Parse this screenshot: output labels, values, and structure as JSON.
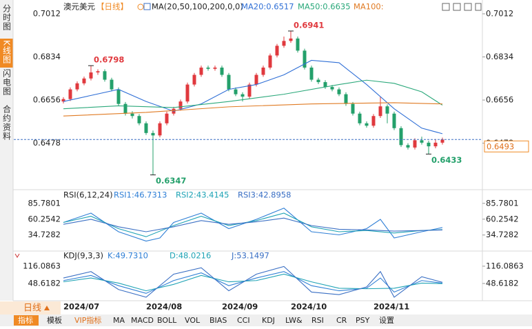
{
  "side_tabs": [
    "分时图",
    "K线图",
    "闪电图",
    "合约资料"
  ],
  "period_button": "日线",
  "bottom_tabs": [
    "指标",
    "模板",
    "VIP指标",
    "MA",
    "MACD",
    "BOLL",
    "VOL",
    "BIAS",
    "CCI",
    "KDJ",
    "LW&",
    "RSI",
    "CR",
    "PSY",
    "设置"
  ],
  "chart_data": [
    {
      "type": "candlestick",
      "title": "澳元美元",
      "period": "【日线】",
      "indicator": "MA(20,50,100,200,0,0)",
      "categories": [
        "2024/07",
        null,
        null,
        null,
        null,
        null,
        null,
        null,
        null,
        null,
        null,
        null,
        "2024/08",
        null,
        null,
        null,
        null,
        null,
        null,
        null,
        null,
        null,
        null,
        "2024/09",
        null,
        null,
        null,
        null,
        null,
        null,
        null,
        null,
        null,
        "2024/10",
        null,
        null,
        null,
        null,
        null,
        null,
        null,
        null,
        null,
        null,
        null,
        "2024/11",
        null,
        null,
        null,
        null,
        null,
        null,
        null,
        null,
        null,
        null
      ],
      "open": [
        0.665,
        0.666,
        0.67,
        0.6725,
        0.6745,
        0.677,
        0.6775,
        0.674,
        0.67,
        0.664,
        0.66,
        0.659,
        0.656,
        0.652,
        0.651,
        0.656,
        0.66,
        0.662,
        0.665,
        0.672,
        0.676,
        0.679,
        0.6785,
        0.679,
        0.676,
        0.67,
        0.668,
        0.667,
        0.672,
        0.676,
        0.679,
        0.684,
        0.688,
        0.69,
        0.691,
        0.686,
        0.679,
        0.674,
        0.673,
        0.671,
        0.67,
        0.668,
        0.664,
        0.66,
        0.656,
        0.655,
        0.659,
        0.663,
        0.66,
        0.654,
        0.647,
        0.646,
        0.649,
        0.648,
        0.6465,
        0.648
      ],
      "high": [
        0.6668,
        0.6708,
        0.6733,
        0.6753,
        0.6798,
        0.6783,
        0.6783,
        0.6748,
        0.6708,
        0.6648,
        0.661,
        0.6598,
        0.6568,
        0.653,
        0.6568,
        0.6608,
        0.6628,
        0.6658,
        0.6728,
        0.6768,
        0.6798,
        0.6798,
        0.6798,
        0.6798,
        0.6768,
        0.6708,
        0.6688,
        0.6728,
        0.6768,
        0.6798,
        0.6848,
        0.6888,
        0.6918,
        0.6941,
        0.6918,
        0.6868,
        0.6798,
        0.6748,
        0.6738,
        0.6718,
        0.6708,
        0.6688,
        0.6648,
        0.6608,
        0.6568,
        0.6598,
        0.667,
        0.6638,
        0.6608,
        0.6548,
        0.6478,
        0.6498,
        0.6505,
        0.6488,
        0.6495,
        0.6501
      ],
      "low": [
        0.6642,
        0.6652,
        0.6692,
        0.6717,
        0.6737,
        0.676,
        0.6732,
        0.6692,
        0.6632,
        0.6592,
        0.658,
        0.6552,
        0.6512,
        0.6347,
        0.6502,
        0.6552,
        0.6592,
        0.6612,
        0.6642,
        0.6712,
        0.6752,
        0.6777,
        0.6777,
        0.6752,
        0.6692,
        0.6672,
        0.665,
        0.6662,
        0.6712,
        0.6752,
        0.6782,
        0.6832,
        0.6872,
        0.6892,
        0.6852,
        0.6782,
        0.6732,
        0.6722,
        0.6702,
        0.6692,
        0.6672,
        0.6632,
        0.6592,
        0.6552,
        0.6542,
        0.6542,
        0.6582,
        0.656,
        0.6532,
        0.6462,
        0.6452,
        0.6452,
        0.6472,
        0.6433,
        0.6457,
        0.6472
      ],
      "close": [
        0.666,
        0.67,
        0.6725,
        0.6745,
        0.677,
        0.6775,
        0.674,
        0.67,
        0.664,
        0.66,
        0.659,
        0.656,
        0.652,
        0.651,
        0.656,
        0.66,
        0.662,
        0.665,
        0.672,
        0.676,
        0.679,
        0.6785,
        0.679,
        0.676,
        0.67,
        0.668,
        0.667,
        0.672,
        0.676,
        0.679,
        0.684,
        0.688,
        0.69,
        0.691,
        0.686,
        0.679,
        0.674,
        0.673,
        0.671,
        0.67,
        0.668,
        0.664,
        0.66,
        0.656,
        0.655,
        0.659,
        0.663,
        0.66,
        0.654,
        0.647,
        0.646,
        0.649,
        0.648,
        0.6465,
        0.648,
        0.6493
      ],
      "up_color": "#e0393e",
      "down_color": "#24a06b",
      "ylim": [
        0.6286,
        0.7069
      ],
      "yticks": [
        0.7012,
        0.6834,
        0.6656,
        0.6478
      ],
      "series": [
        {
          "name": "MA20:0.6517",
          "color": "#2f6fd6",
          "x": [
            0,
            4,
            8,
            12,
            16,
            20,
            24,
            28,
            32,
            36,
            40,
            44,
            48,
            52,
            55
          ],
          "values": [
            0.665,
            0.6675,
            0.67,
            0.665,
            0.661,
            0.664,
            0.67,
            0.672,
            0.676,
            0.682,
            0.681,
            0.672,
            0.662,
            0.654,
            0.6517
          ]
        },
        {
          "name": "MA50:0.6635",
          "color": "#2aa87a",
          "x": [
            0,
            8,
            16,
            24,
            32,
            40,
            44,
            48,
            52,
            55
          ],
          "values": [
            0.662,
            0.6632,
            0.6625,
            0.665,
            0.668,
            0.672,
            0.6738,
            0.6725,
            0.669,
            0.6635
          ]
        },
        {
          "name": "MA100:",
          "color": "#e07a22",
          "x": [
            0,
            12,
            24,
            36,
            48,
            55
          ],
          "values": [
            0.659,
            0.6605,
            0.6628,
            0.664,
            0.6645,
            0.664
          ]
        }
      ]
    },
    {
      "type": "line",
      "title": "RSI(6,12,24)",
      "ylim": [
        10,
        100
      ],
      "yticks": [
        85.7801,
        60.2542,
        34.7282
      ],
      "series": [
        {
          "name": "RSI1:46.7313",
          "color": "#2f7fd6",
          "x": [
            0,
            4,
            8,
            12,
            14,
            16,
            20,
            24,
            28,
            32,
            36,
            40,
            44,
            46,
            48,
            52,
            55
          ],
          "values": [
            55,
            70,
            40,
            25,
            30,
            55,
            70,
            45,
            60,
            78,
            40,
            35,
            45,
            60,
            30,
            40,
            46.7313
          ]
        },
        {
          "name": "RSI2:43.4145",
          "color": "#1fa3b5",
          "x": [
            0,
            4,
            8,
            12,
            16,
            20,
            24,
            28,
            32,
            36,
            40,
            44,
            48,
            52,
            55
          ],
          "values": [
            55,
            65,
            45,
            32,
            50,
            65,
            50,
            58,
            70,
            48,
            40,
            42,
            38,
            42,
            43.4145
          ]
        },
        {
          "name": "RSI3:42.8958",
          "color": "#3a6fc4",
          "x": [
            0,
            4,
            8,
            12,
            16,
            20,
            24,
            28,
            32,
            36,
            40,
            44,
            48,
            52,
            55
          ],
          "values": [
            52,
            60,
            48,
            40,
            48,
            58,
            52,
            56,
            62,
            50,
            44,
            43,
            41,
            42,
            42.8958
          ]
        }
      ]
    },
    {
      "type": "line",
      "title": "KDJ(9,3,3)",
      "ylim": [
        -8,
        159
      ],
      "yticks": [
        116.0863,
        48.6182
      ],
      "series": [
        {
          "name": "K:49.7310",
          "color": "#2f7fd6",
          "x": [
            0,
            4,
            8,
            12,
            16,
            20,
            24,
            28,
            32,
            36,
            40,
            44,
            46,
            48,
            52,
            55
          ],
          "values": [
            60,
            80,
            40,
            10,
            60,
            90,
            40,
            70,
            95,
            40,
            20,
            30,
            70,
            15,
            60,
            49.731
          ]
        },
        {
          "name": "D:48.0216",
          "color": "#1fa3b5",
          "x": [
            0,
            4,
            8,
            12,
            16,
            20,
            24,
            28,
            32,
            36,
            40,
            44,
            48,
            52,
            55
          ],
          "values": [
            55,
            70,
            50,
            20,
            45,
            80,
            55,
            60,
            85,
            55,
            30,
            28,
            30,
            50,
            48.0216
          ]
        },
        {
          "name": "J:53.1497",
          "color": "#3a6fc4",
          "x": [
            0,
            4,
            8,
            12,
            16,
            20,
            24,
            28,
            32,
            36,
            40,
            44,
            46,
            48,
            52,
            55
          ],
          "values": [
            70,
            95,
            25,
            -5,
            85,
            110,
            20,
            85,
            115,
            15,
            5,
            35,
            95,
            -5,
            75,
            53.1497
          ]
        }
      ]
    }
  ]
}
